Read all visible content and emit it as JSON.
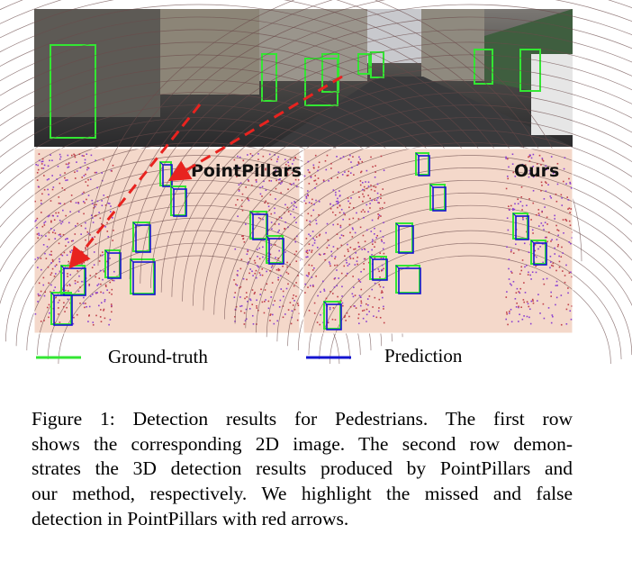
{
  "figure": {
    "panel_labels": [
      "PointPillars",
      "Ours"
    ],
    "legend": [
      "Ground-truth",
      "Prediction"
    ],
    "caption_lines": [
      "Figure 1: Detection results for Pedestrians. The first row",
      "shows the corresponding 2D image. The second row demon-",
      "strates the 3D detection results produced by PointPillars and",
      "our method, respectively. We highlight the missed and false",
      "detection in PointPillars with red arrows."
    ]
  }
}
